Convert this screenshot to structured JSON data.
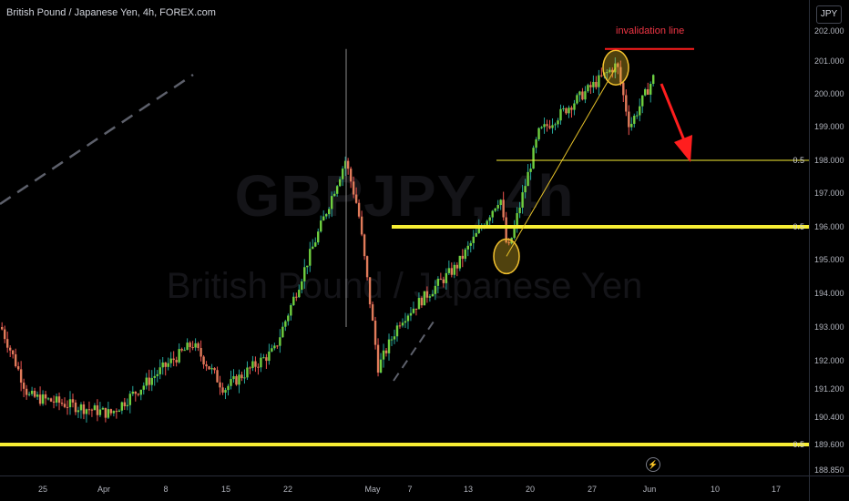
{
  "header": {
    "symbol_title": "British Pound / Japanese Yen, 4h, FOREX.com"
  },
  "watermark": {
    "symbol": "GBPJPY, 4h",
    "description": "British Pound / Japanese Yen"
  },
  "price_axis": {
    "currency_button": "JPY",
    "ticks": [
      "202.000",
      "201.000",
      "200.000",
      "199.000",
      "198.000",
      "197.000",
      "196.000",
      "195.000",
      "194.000",
      "193.000",
      "192.000",
      "191.200",
      "190.400",
      "189.600",
      "188.850"
    ]
  },
  "time_axis": {
    "ticks": [
      "25",
      "Apr",
      "8",
      "15",
      "22",
      "May",
      "7",
      "13",
      "20",
      "27",
      "Jun",
      "10",
      "17"
    ]
  },
  "annotations": {
    "invalidation_label": "invalidation line",
    "fib_labels": [
      "0.5",
      "0.5",
      "0.5"
    ],
    "flash_icon": "lightning-icon"
  },
  "colors": {
    "up": "#26a69a",
    "up_body": "#6fcf3f",
    "down": "#ef5350",
    "down_body": "#e07b5a",
    "yellow": "#f7ee34",
    "red": "#ff1e1e",
    "background": "#000000"
  },
  "chart_data": {
    "type": "candlestick",
    "title": "British Pound / Japanese Yen, 4h, FOREX.com",
    "xlabel": "",
    "ylabel": "",
    "ylim": [
      188.75,
      202.3
    ],
    "x_ticks": [
      "25",
      "Apr",
      "8",
      "15",
      "22",
      "May",
      "7",
      "13",
      "20",
      "27",
      "Jun",
      "10",
      "17"
    ],
    "y_ticks": [
      202.0,
      201.0,
      200.0,
      199.0,
      198.0,
      197.0,
      196.0,
      195.0,
      194.0,
      193.0,
      192.0,
      191.2,
      190.4,
      189.6,
      188.85
    ],
    "key_points": [
      {
        "time": "Mar 20",
        "price": 193.0
      },
      {
        "time": "Mar 26",
        "price": 191.0
      },
      {
        "time": "Apr 2",
        "price": 190.5
      },
      {
        "time": "Apr 10",
        "price": 192.5
      },
      {
        "time": "Apr 17",
        "price": 191.2
      },
      {
        "time": "Apr 24",
        "price": 192.3
      },
      {
        "time": "Apr 29 (high)",
        "price": 198.0
      },
      {
        "time": "Apr 30",
        "price": 196.5
      },
      {
        "time": "May 1 (low)",
        "price": 191.8
      },
      {
        "time": "May 3",
        "price": 193.2
      },
      {
        "time": "May 9",
        "price": 194.8
      },
      {
        "time": "May 14",
        "price": 196.9
      },
      {
        "time": "May 15 (low)",
        "price": 195.2
      },
      {
        "time": "May 20",
        "price": 198.8
      },
      {
        "time": "May 28 (high)",
        "price": 200.9
      },
      {
        "time": "May 30 (low)",
        "price": 199.0
      },
      {
        "time": "Jun 3",
        "price": 200.6
      }
    ],
    "horizontal_levels": [
      {
        "label": "0.5",
        "price": 198.0
      },
      {
        "label": "0.5",
        "price": 196.0
      },
      {
        "label": "0.5",
        "price": 189.6
      }
    ],
    "invalidation_level": 201.4,
    "grid": false
  }
}
